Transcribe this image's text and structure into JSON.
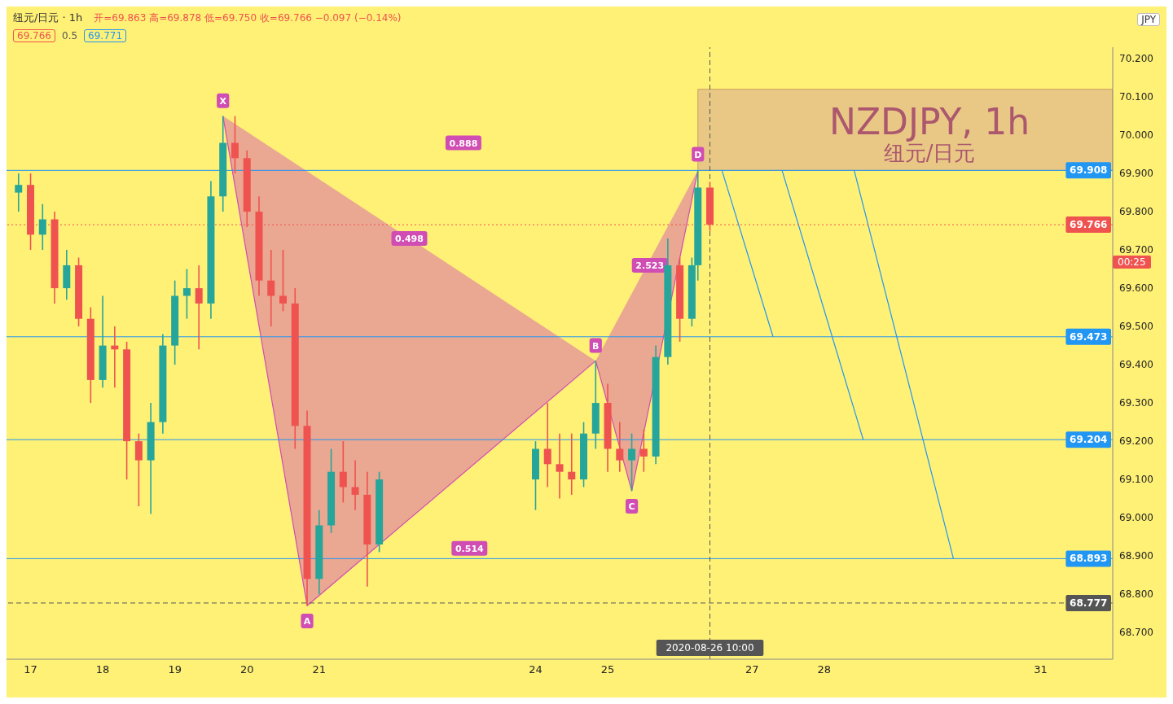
{
  "chart_data": {
    "type": "candlestick",
    "title": "纽元/日元 · 1h",
    "subtitle": "NZDJPY, 1h\n纽元/日元",
    "x": [
      "2020-08-16T20:00",
      "2020-08-17T00:00",
      "2020-08-17T04:00",
      "2020-08-17T08:00",
      "2020-08-17T12:00",
      "2020-08-17T16:00",
      "2020-08-17T20:00",
      "2020-08-18T00:00",
      "2020-08-18T04:00",
      "2020-08-18T08:00",
      "2020-08-18T12:00",
      "2020-08-18T16:00",
      "2020-08-18T20:00",
      "2020-08-19T00:00",
      "2020-08-19T04:00",
      "2020-08-19T08:00",
      "2020-08-19T12:00",
      "2020-08-19T16:00",
      "2020-08-19T20:00",
      "2020-08-20T00:00",
      "2020-08-20T04:00",
      "2020-08-20T08:00",
      "2020-08-20T12:00",
      "2020-08-20T16:00",
      "2020-08-20T20:00",
      "2020-08-21T00:00",
      "2020-08-21T04:00",
      "2020-08-21T08:00",
      "2020-08-21T12:00",
      "2020-08-21T16:00",
      "2020-08-21T20:00",
      "2020-08-24T00:00",
      "2020-08-24T04:00",
      "2020-08-24T08:00",
      "2020-08-24T12:00",
      "2020-08-24T16:00",
      "2020-08-24T20:00",
      "2020-08-25T00:00",
      "2020-08-25T04:00",
      "2020-08-25T08:00",
      "2020-08-25T12:00",
      "2020-08-25T16:00",
      "2020-08-25T20:00",
      "2020-08-26T00:00",
      "2020-08-26T04:00",
      "2020-08-26T06:00",
      "2020-08-26T10:00"
    ],
    "ohlc": [
      [
        69.85,
        69.9,
        69.8,
        69.87
      ],
      [
        69.87,
        69.9,
        69.7,
        69.74
      ],
      [
        69.74,
        69.82,
        69.7,
        69.78
      ],
      [
        69.78,
        69.8,
        69.56,
        69.6
      ],
      [
        69.6,
        69.7,
        69.57,
        69.66
      ],
      [
        69.66,
        69.68,
        69.5,
        69.52
      ],
      [
        69.52,
        69.55,
        69.3,
        69.36
      ],
      [
        69.36,
        69.58,
        69.34,
        69.45
      ],
      [
        69.45,
        69.5,
        69.34,
        69.44
      ],
      [
        69.44,
        69.46,
        69.1,
        69.2
      ],
      [
        69.2,
        69.22,
        69.03,
        69.15
      ],
      [
        69.15,
        69.3,
        69.01,
        69.25
      ],
      [
        69.25,
        69.48,
        69.22,
        69.45
      ],
      [
        69.45,
        69.62,
        69.4,
        69.58
      ],
      [
        69.58,
        69.65,
        69.52,
        69.6
      ],
      [
        69.6,
        69.66,
        69.44,
        69.56
      ],
      [
        69.56,
        69.88,
        69.52,
        69.84
      ],
      [
        69.84,
        70.05,
        69.8,
        69.98
      ],
      [
        69.98,
        70.05,
        69.9,
        69.94
      ],
      [
        69.94,
        69.96,
        69.76,
        69.8
      ],
      [
        69.8,
        69.84,
        69.58,
        69.62
      ],
      [
        69.62,
        69.7,
        69.5,
        69.58
      ],
      [
        69.58,
        69.7,
        69.54,
        69.56
      ],
      [
        69.56,
        69.6,
        69.18,
        69.24
      ],
      [
        69.24,
        69.28,
        68.77,
        68.84
      ],
      [
        68.84,
        69.02,
        68.8,
        68.98
      ],
      [
        68.98,
        69.18,
        68.96,
        69.12
      ],
      [
        69.12,
        69.2,
        69.04,
        69.08
      ],
      [
        69.08,
        69.15,
        69.02,
        69.06
      ],
      [
        69.06,
        69.12,
        68.82,
        68.93
      ],
      [
        68.93,
        69.12,
        68.91,
        69.1
      ],
      [
        69.1,
        69.2,
        69.02,
        69.18
      ],
      [
        69.18,
        69.3,
        69.08,
        69.14
      ],
      [
        69.14,
        69.22,
        69.05,
        69.12
      ],
      [
        69.12,
        69.22,
        69.06,
        69.1
      ],
      [
        69.1,
        69.25,
        69.08,
        69.22
      ],
      [
        69.22,
        69.41,
        69.18,
        69.3
      ],
      [
        69.3,
        69.35,
        69.12,
        69.18
      ],
      [
        69.18,
        69.25,
        69.12,
        69.15
      ],
      [
        69.15,
        69.22,
        69.07,
        69.18
      ],
      [
        69.18,
        69.23,
        69.12,
        69.16
      ],
      [
        69.16,
        69.45,
        69.14,
        69.42
      ],
      [
        69.42,
        69.73,
        69.4,
        69.66
      ],
      [
        69.66,
        69.68,
        69.46,
        69.52
      ],
      [
        69.52,
        69.68,
        69.5,
        69.66
      ],
      [
        69.66,
        69.908,
        69.62,
        69.863
      ],
      [
        69.863,
        69.878,
        69.75,
        69.766
      ]
    ],
    "colors": [
      "#26a69a",
      "#ef5350",
      "#26a69a",
      "#ef5350",
      "#26a69a",
      "#ef5350",
      "#ef5350",
      "#26a69a",
      "#ef5350",
      "#ef5350",
      "#ef5350",
      "#26a69a",
      "#26a69a",
      "#26a69a",
      "#26a69a",
      "#ef5350",
      "#26a69a",
      "#26a69a",
      "#ef5350",
      "#ef5350",
      "#ef5350",
      "#ef5350",
      "#ef5350",
      "#ef5350",
      "#ef5350",
      "#26a69a",
      "#26a69a",
      "#ef5350",
      "#ef5350",
      "#ef5350",
      "#26a69a",
      "#26a69a",
      "#ef5350",
      "#ef5350",
      "#ef5350",
      "#26a69a",
      "#26a69a",
      "#ef5350",
      "#ef5350",
      "#26a69a",
      "#ef5350",
      "#26a69a",
      "#26a69a",
      "#ef5350",
      "#26a69a",
      "#26a69a",
      "#ef5350"
    ],
    "series": [
      {
        "type": "line",
        "color": "#d04db4",
        "x": [
          "2020-08-19T16:00",
          "2020-08-20T20:00",
          "2020-08-24T20:00",
          "2020-08-25T08:00",
          "2020-08-26T06:00"
        ],
        "values": [
          70.05,
          68.77,
          69.41,
          69.07,
          69.908
        ]
      },
      {
        "type": "line",
        "color": "#2196f3",
        "x": [
          "2020-08-26T14:00",
          "2020-08-27T07:00"
        ],
        "values": [
          69.908,
          69.473
        ]
      },
      {
        "type": "line",
        "color": "#2196f3",
        "x": [
          "2020-08-27T10:00",
          "2020-08-28T13:00"
        ],
        "values": [
          69.908,
          69.204
        ]
      },
      {
        "type": "line",
        "color": "#2196f3",
        "x": [
          "2020-08-28T10:00",
          "2020-08-29T19:00"
        ],
        "values": [
          69.908,
          68.893
        ]
      }
    ],
    "xlim": [
      "2020-08-16T16:00",
      "2020-09-01T00:00"
    ],
    "xticks": [
      {
        "value": "2020-08-17",
        "label": "17"
      },
      {
        "value": "2020-08-18",
        "label": "18"
      },
      {
        "value": "2020-08-19",
        "label": "19"
      },
      {
        "value": "2020-08-20",
        "label": "20"
      },
      {
        "value": "2020-08-21",
        "label": "21"
      },
      {
        "value": "2020-08-24",
        "label": "24"
      },
      {
        "value": "2020-08-25",
        "label": "25"
      },
      {
        "value": "2020-08-27",
        "label": "27"
      },
      {
        "value": "2020-08-28",
        "label": "28"
      },
      {
        "value": "2020-08-31",
        "label": "31"
      }
    ],
    "ylim": [
      68.63,
      70.23
    ],
    "yticks": [
      {
        "value": 68.7,
        "label": "68.700"
      },
      {
        "value": 68.8,
        "label": "68.800"
      },
      {
        "value": 68.9,
        "label": "68.900"
      },
      {
        "value": 69.0,
        "label": "69.000"
      },
      {
        "value": 69.1,
        "label": "69.100"
      },
      {
        "value": 69.2,
        "label": "69.200"
      },
      {
        "value": 69.3,
        "label": "69.300"
      },
      {
        "value": 69.4,
        "label": "69.400"
      },
      {
        "value": 69.5,
        "label": "69.500"
      },
      {
        "value": 69.6,
        "label": "69.600"
      },
      {
        "value": 69.7,
        "label": "69.700"
      },
      {
        "value": 69.8,
        "label": "69.800"
      },
      {
        "value": 69.9,
        "label": "69.900"
      },
      {
        "value": 70.0,
        "label": "70.000"
      },
      {
        "value": 70.1,
        "label": "70.100"
      },
      {
        "value": 70.2,
        "label": "70.200"
      }
    ],
    "ref_lines": [
      {
        "axis": "y",
        "value": 69.908,
        "label": "69.908",
        "color": "#2196f3",
        "line_style": "solid"
      },
      {
        "axis": "y",
        "value": 69.473,
        "label": "69.473",
        "color": "#2196f3",
        "line_style": "solid"
      },
      {
        "axis": "y",
        "value": 69.204,
        "label": "69.204",
        "color": "#2196f3",
        "line_style": "solid"
      },
      {
        "axis": "y",
        "value": 68.893,
        "label": "68.893",
        "color": "#2196f3",
        "line_style": "solid"
      },
      {
        "axis": "y",
        "value": 69.766,
        "label": "69.766",
        "color": "#ef5350",
        "line_style": "dotted"
      },
      {
        "axis": "y",
        "value": 68.777,
        "label": "68.777",
        "color": "#555555",
        "line_style": "dashed"
      },
      {
        "axis": "x",
        "value": "2020-08-26T10:00",
        "label": "2020-08-26 10:00",
        "color": "#555555",
        "line_style": "dashed"
      }
    ],
    "bands": [
      {
        "axis": "y",
        "from": 69.908,
        "to": 70.12,
        "color": "#e9c886"
      }
    ],
    "annotations": [
      "开=69.863 高=69.878 低=69.750 收=69.766 −0.097 (−0.14%)",
      "69.766",
      "0.5",
      "69.771",
      "JPY",
      "00:25",
      {
        "text": "X",
        "x": "2020-08-19T16:00",
        "y": 70.09
      },
      {
        "text": "A",
        "x": "2020-08-20T20:00",
        "y": 68.73
      },
      {
        "text": "B",
        "x": "2020-08-24T20:00",
        "y": 69.45
      },
      {
        "text": "C",
        "x": "2020-08-25T08:00",
        "y": 69.03
      },
      {
        "text": "D",
        "x": "2020-08-26T06:00",
        "y": 69.95
      },
      {
        "text": "0.888",
        "x": "2020-08-23T00:00",
        "y": 69.98
      },
      {
        "text": "0.498",
        "x": "2020-08-22T06:00",
        "y": 69.73
      },
      {
        "text": "0.514",
        "x": "2020-08-23T02:00",
        "y": 68.92
      },
      {
        "text": "2.523",
        "x": "2020-08-25T14:00",
        "y": 69.66
      }
    ]
  }
}
